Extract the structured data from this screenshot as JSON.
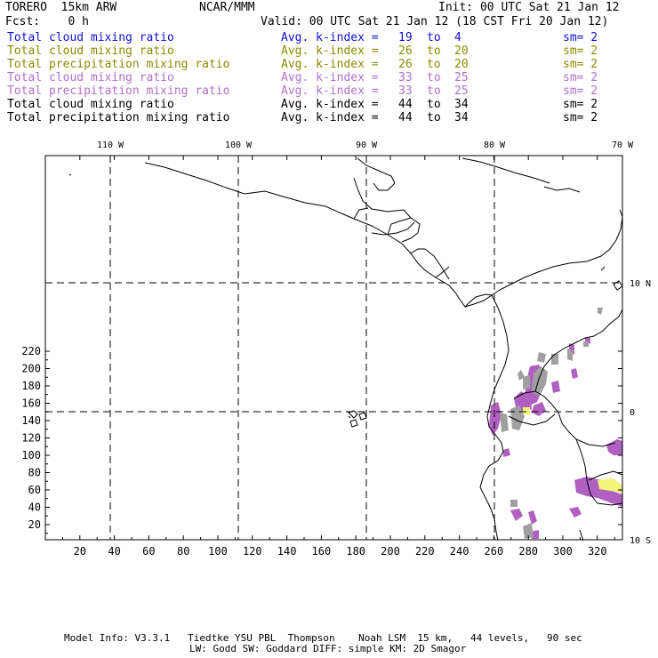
{
  "header": {
    "model": "TORERO  15km ARW",
    "org": "NCAR/MMM",
    "init": "Init: 00 UTC Sat 21 Jan 12",
    "fcst": "Fcst:    0 h",
    "valid": "Valid: 00 UTC Sat 21 Jan 12 (18 CST Fri 20 Jan 12)"
  },
  "legend": [
    {
      "field": "Total cloud mixing ratio",
      "index_label": "Avg. k-index =",
      "from": "19",
      "to_word": "to",
      "to": "4",
      "sm": "sm= 2",
      "color": "#1010d0"
    },
    {
      "field": "Total cloud mixing ratio",
      "index_label": "Avg. k-index =",
      "from": "26",
      "to_word": "to",
      "to": "20",
      "sm": "sm= 2",
      "color": "#8a8a00"
    },
    {
      "field": "Total precipitation mixing ratio",
      "index_label": "Avg. k-index =",
      "from": "26",
      "to_word": "to",
      "to": "20",
      "sm": "sm= 2",
      "color": "#8a8a00"
    },
    {
      "field": "Total cloud mixing ratio",
      "index_label": "Avg. k-index =",
      "from": "33",
      "to_word": "to",
      "to": "25",
      "sm": "sm= 2",
      "color": "#b070c8"
    },
    {
      "field": "Total precipitation mixing ratio",
      "index_label": "Avg. k-index =",
      "from": "33",
      "to_word": "to",
      "to": "25",
      "sm": "sm= 2",
      "color": "#b070c8"
    },
    {
      "field": "Total cloud mixing ratio",
      "index_label": "Avg. k-index =",
      "from": "44",
      "to_word": "to",
      "to": "34",
      "sm": "sm= 2",
      "color": "#000000"
    },
    {
      "field": "Total precipitation mixing ratio",
      "index_label": "Avg. k-index =",
      "from": "44",
      "to_word": "to",
      "to": "34",
      "sm": "sm= 2",
      "color": "#000000"
    }
  ],
  "map": {
    "lon_labels": [
      "110 W",
      "100 W",
      "90 W",
      "80 W",
      "70 W"
    ],
    "lat_labels": [
      "10 N",
      "0",
      "10 S"
    ],
    "x_ticks": [
      "20",
      "40",
      "60",
      "80",
      "100",
      "120",
      "140",
      "160",
      "180",
      "200",
      "220",
      "240",
      "260",
      "280",
      "300",
      "320"
    ],
    "y_ticks": [
      "220",
      "200",
      "180",
      "160",
      "140",
      "120",
      "100",
      "80",
      "60",
      "40",
      "20"
    ],
    "colors": {
      "gray": "#a0a0a0",
      "magenta": "#b060c0",
      "yellow": "#f4f47a",
      "lines": "#000000"
    }
  },
  "footer": {
    "line1": "Model Info: V3.3.1   Tiedtke YSU PBL  Thompson    Noah LSM  15 km,   44 levels,   90 sec",
    "line2": "LW: Godd SW: Goddard DIFF: simple KM: 2D Smagor"
  }
}
